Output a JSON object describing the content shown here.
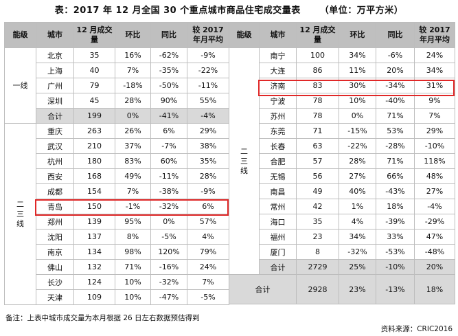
{
  "title": "表：2017 年 12 月全国 30 个重点城市商品住宅成交量表",
  "unit": "（单位：万平方米）",
  "headers": {
    "level": "能级",
    "city": "城市",
    "volume": "12 月成交量",
    "mom": "环比",
    "yoy": "同比",
    "vs2017": "较 2017 年月平均"
  },
  "left": {
    "tier1_label": "一线",
    "tier23_label": "二三线",
    "tier1_rows": [
      {
        "city": "北京",
        "volume": "35",
        "mom": "16%",
        "yoy": "-62%",
        "vs": "-9%"
      },
      {
        "city": "上海",
        "volume": "40",
        "mom": "7%",
        "yoy": "-35%",
        "vs": "-22%"
      },
      {
        "city": "广州",
        "volume": "79",
        "mom": "-18%",
        "yoy": "-50%",
        "vs": "-11%"
      },
      {
        "city": "深圳",
        "volume": "45",
        "mom": "28%",
        "yoy": "90%",
        "vs": "55%"
      }
    ],
    "tier1_total": {
      "city": "合计",
      "volume": "199",
      "mom": "0%",
      "yoy": "-41%",
      "vs": "-4%"
    },
    "tier23_rows": [
      {
        "city": "重庆",
        "volume": "263",
        "mom": "26%",
        "yoy": "6%",
        "vs": "29%"
      },
      {
        "city": "武汉",
        "volume": "210",
        "mom": "37%",
        "yoy": "-7%",
        "vs": "38%"
      },
      {
        "city": "杭州",
        "volume": "180",
        "mom": "83%",
        "yoy": "60%",
        "vs": "35%"
      },
      {
        "city": "西安",
        "volume": "168",
        "mom": "49%",
        "yoy": "-11%",
        "vs": "28%"
      },
      {
        "city": "成都",
        "volume": "154",
        "mom": "7%",
        "yoy": "-38%",
        "vs": "-9%"
      },
      {
        "city": "青岛",
        "volume": "150",
        "mom": "-1%",
        "yoy": "-32%",
        "vs": "6%"
      },
      {
        "city": "郑州",
        "volume": "139",
        "mom": "95%",
        "yoy": "0%",
        "vs": "57%"
      },
      {
        "city": "沈阳",
        "volume": "137",
        "mom": "8%",
        "yoy": "-5%",
        "vs": "4%"
      },
      {
        "city": "南京",
        "volume": "134",
        "mom": "98%",
        "yoy": "120%",
        "vs": "79%"
      },
      {
        "city": "佛山",
        "volume": "132",
        "mom": "71%",
        "yoy": "-16%",
        "vs": "24%"
      },
      {
        "city": "长沙",
        "volume": "124",
        "mom": "10%",
        "yoy": "-32%",
        "vs": "7%"
      },
      {
        "city": "天津",
        "volume": "109",
        "mom": "10%",
        "yoy": "-47%",
        "vs": "-5%"
      }
    ]
  },
  "right": {
    "tier23_label": "二三线",
    "rows": [
      {
        "city": "南宁",
        "volume": "100",
        "mom": "34%",
        "yoy": "-6%",
        "vs": "24%"
      },
      {
        "city": "大连",
        "volume": "86",
        "mom": "11%",
        "yoy": "20%",
        "vs": "34%"
      },
      {
        "city": "济南",
        "volume": "83",
        "mom": "30%",
        "yoy": "-34%",
        "vs": "31%"
      },
      {
        "city": "宁波",
        "volume": "78",
        "mom": "10%",
        "yoy": "-40%",
        "vs": "9%"
      },
      {
        "city": "苏州",
        "volume": "78",
        "mom": "0%",
        "yoy": "71%",
        "vs": "7%"
      },
      {
        "city": "东莞",
        "volume": "71",
        "mom": "-15%",
        "yoy": "53%",
        "vs": "29%"
      },
      {
        "city": "长春",
        "volume": "63",
        "mom": "-22%",
        "yoy": "-28%",
        "vs": "-10%"
      },
      {
        "city": "合肥",
        "volume": "57",
        "mom": "28%",
        "yoy": "71%",
        "vs": "118%"
      },
      {
        "city": "无锡",
        "volume": "56",
        "mom": "27%",
        "yoy": "66%",
        "vs": "48%"
      },
      {
        "city": "南昌",
        "volume": "49",
        "mom": "40%",
        "yoy": "-43%",
        "vs": "27%"
      },
      {
        "city": "常州",
        "volume": "42",
        "mom": "1%",
        "yoy": "18%",
        "vs": "-4%"
      },
      {
        "city": "海口",
        "volume": "35",
        "mom": "4%",
        "yoy": "-39%",
        "vs": "-29%"
      },
      {
        "city": "福州",
        "volume": "23",
        "mom": "34%",
        "yoy": "33%",
        "vs": "47%"
      },
      {
        "city": "厦门",
        "volume": "8",
        "mom": "-32%",
        "yoy": "-53%",
        "vs": "-48%"
      }
    ],
    "tier23_total": {
      "city": "合计",
      "volume": "2729",
      "mom": "25%",
      "yoy": "-10%",
      "vs": "20%"
    },
    "grand_total": {
      "label": "合计",
      "volume": "2928",
      "mom": "23%",
      "yoy": "-13%",
      "vs": "18%"
    }
  },
  "note": "备注：上表中城市成交量为本月根据 26 日左右数据预估得到",
  "source": "资料来源：CRIC2016"
}
